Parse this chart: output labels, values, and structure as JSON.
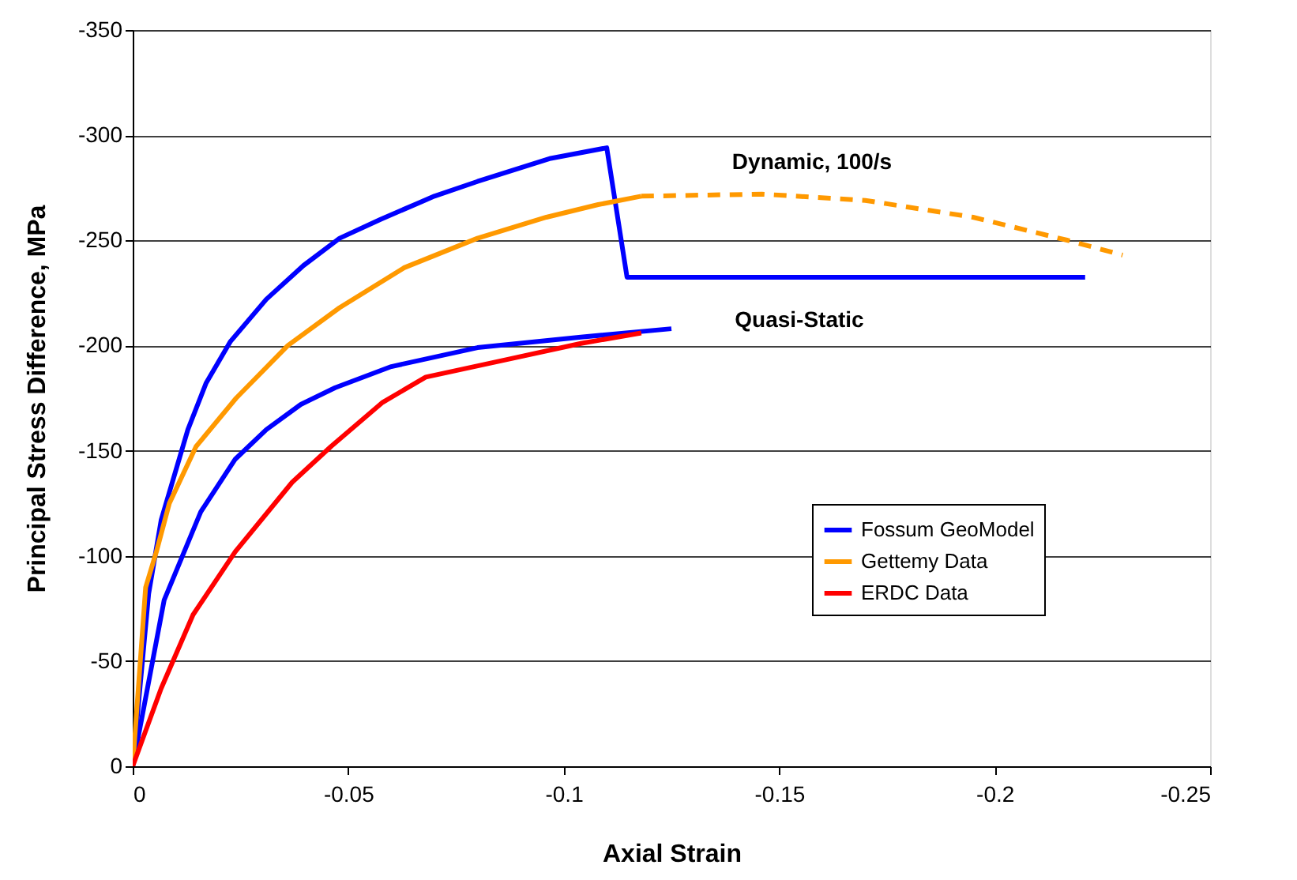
{
  "chart_data": {
    "type": "line",
    "xlabel": "Axial Strain",
    "ylabel": "Principal Stress Difference, MPa",
    "xlim": [
      0,
      -0.25
    ],
    "xticks": [
      0,
      -0.05,
      -0.1,
      -0.15,
      -0.2,
      -0.25
    ],
    "ylim": [
      0,
      -350
    ],
    "yticks": [
      0,
      -50,
      -100,
      -150,
      -200,
      -250,
      -300,
      -350
    ],
    "grid": "y",
    "legend": "right",
    "marker": "none",
    "annotations": [
      "Dynamic, 100/s",
      "Quasi-Static"
    ],
    "series": [
      {
        "name": "Fossum GeoModel",
        "color": "#0000ff",
        "line_style": "solid",
        "x": [
          0,
          -0.0037,
          -0.0066,
          -0.0128,
          -0.017,
          -0.0227,
          -0.031,
          -0.0396,
          -0.048,
          -0.0575,
          -0.07,
          -0.08,
          -0.097,
          -0.11,
          -0.1147,
          -0.221
        ],
        "values": [
          0,
          -82,
          -117,
          -160,
          -182,
          -202,
          -222,
          -238,
          -251,
          -260,
          -271,
          -278,
          -289,
          -294,
          -232.5,
          -232.5
        ]
      },
      {
        "color": "#0000ff",
        "line_style": "solid",
        "x": [
          0,
          -0.0073,
          -0.0158,
          -0.0238,
          -0.031,
          -0.039,
          -0.047,
          -0.06,
          -0.08,
          -0.104,
          -0.125
        ],
        "values": [
          0,
          -79,
          -121,
          -146,
          -160,
          -172,
          -180,
          -190,
          -199,
          -204,
          -208
        ]
      },
      {
        "name": "Gettemy Data",
        "color": "#ff9900",
        "line_style": "solid",
        "x": [
          0,
          -0.003,
          -0.0055,
          -0.0085,
          -0.0147,
          -0.024,
          -0.036,
          -0.048,
          -0.063,
          -0.08,
          -0.096,
          -0.108,
          -0.118
        ],
        "values": [
          0,
          -85,
          -102,
          -125,
          -152,
          -175,
          -200,
          -218,
          -237,
          -251,
          -261,
          -267,
          -271
        ]
      },
      {
        "color": "#ff9900",
        "line_style": "dashed",
        "x": [
          -0.118,
          -0.146,
          -0.17,
          -0.195,
          -0.217,
          -0.2297
        ],
        "values": [
          -271,
          -272,
          -269,
          -261,
          -250,
          -243
        ]
      },
      {
        "name": "ERDC Data",
        "color": "#ff0000",
        "line_style": "solid",
        "x": [
          0,
          -0.0066,
          -0.014,
          -0.0238,
          -0.037,
          -0.046,
          -0.058,
          -0.068,
          -0.086,
          -0.104,
          -0.118
        ],
        "values": [
          0,
          -37,
          -72,
          -102,
          -135,
          -152,
          -173,
          -185,
          -193,
          -201,
          -206
        ]
      }
    ]
  }
}
